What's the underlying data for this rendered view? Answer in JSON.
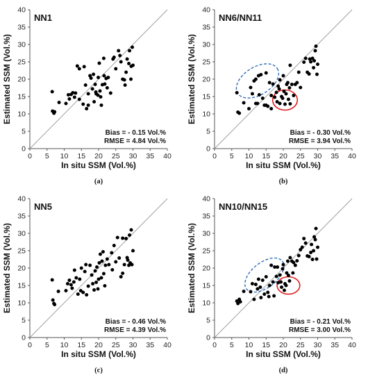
{
  "chart_data": [
    {
      "type": "scatter",
      "panel_title": "NN1",
      "caption": "(a)",
      "xlabel": "In situ SSM (Vol.%)",
      "ylabel": "Estimated SSM (Vol.%)",
      "xlim": [
        0,
        40
      ],
      "ylim": [
        0,
        40
      ],
      "xticks": [
        0,
        5,
        10,
        15,
        20,
        25,
        30,
        35,
        40
      ],
      "yticks": [
        0,
        5,
        10,
        15,
        20,
        25,
        30,
        35,
        40
      ],
      "one_to_one_line": true,
      "annotations": [
        "Bias = - 0.15 Vol.%",
        "RMSE = 4.84 Vol.%"
      ],
      "points": [
        [
          6.5,
          16.4
        ],
        [
          6.6,
          10.8
        ],
        [
          7.0,
          10.2
        ],
        [
          7.2,
          10.6
        ],
        [
          8.5,
          13.3
        ],
        [
          10.5,
          13.0
        ],
        [
          11.2,
          15.5
        ],
        [
          11.5,
          14.3
        ],
        [
          12,
          15.6
        ],
        [
          12.5,
          16.1
        ],
        [
          13,
          14.8
        ],
        [
          13.3,
          16.0
        ],
        [
          13.8,
          23.8
        ],
        [
          14.4,
          23.0
        ],
        [
          14.4,
          14.2
        ],
        [
          15.5,
          12.8
        ],
        [
          15.8,
          23.6
        ],
        [
          16.2,
          18.3
        ],
        [
          16.5,
          11.5
        ],
        [
          17,
          12.5
        ],
        [
          17,
          15.8
        ],
        [
          17.5,
          21.0
        ],
        [
          17.8,
          20.3
        ],
        [
          18.2,
          17.2
        ],
        [
          18.5,
          21.4
        ],
        [
          18.7,
          13.5
        ],
        [
          19,
          18.5
        ],
        [
          19.2,
          16.3
        ],
        [
          19.3,
          15.8
        ],
        [
          19.8,
          15.4
        ],
        [
          19.9,
          20.5
        ],
        [
          20.2,
          24.6
        ],
        [
          20.4,
          16.6
        ],
        [
          20.6,
          14.9
        ],
        [
          20.8,
          12.5
        ],
        [
          21.1,
          18.4
        ],
        [
          21.5,
          26.0
        ],
        [
          21.6,
          21.0
        ],
        [
          21.8,
          18.6
        ],
        [
          22.2,
          20.2
        ],
        [
          22.5,
          17.5
        ],
        [
          22.8,
          20.5
        ],
        [
          23.5,
          16.0
        ],
        [
          24.2,
          25.8
        ],
        [
          24.5,
          26.3
        ],
        [
          25,
          23.0
        ],
        [
          25.8,
          28.2
        ],
        [
          26.2,
          26.8
        ],
        [
          26.5,
          25.0
        ],
        [
          27,
          20.0
        ],
        [
          27.5,
          19.8
        ],
        [
          27.7,
          18.3
        ],
        [
          28,
          22.0
        ],
        [
          28.3,
          25.8
        ],
        [
          28.8,
          24.5
        ],
        [
          29,
          28.2
        ],
        [
          29.4,
          20.0
        ],
        [
          29.5,
          23.7
        ],
        [
          29.8,
          29.2
        ],
        [
          30,
          24.0
        ]
      ]
    },
    {
      "type": "scatter",
      "panel_title": "NN6/NN11",
      "caption": "(b)",
      "xlabel": "In situ SSM (Vol.%)",
      "ylabel": "Estimated SSM (Vol.%)",
      "xlim": [
        0,
        40
      ],
      "ylim": [
        0,
        40
      ],
      "xticks": [
        0,
        5,
        10,
        15,
        20,
        25,
        30,
        35,
        40
      ],
      "yticks": [
        0,
        5,
        10,
        15,
        20,
        25,
        30,
        35,
        40
      ],
      "one_to_one_line": true,
      "annotations": [
        "Bias = - 0.30 Vol.%",
        "RMSE = 3.94 Vol.%"
      ],
      "highlights": [
        {
          "shape": "ellipse",
          "style": "dashed",
          "color": "#2e6db8",
          "center": [
            12.5,
            19.5
          ],
          "radii": [
            6.8,
            4.0
          ],
          "rotation_deg": -32
        },
        {
          "shape": "ellipse",
          "style": "solid",
          "color": "#e01b1b",
          "center": [
            20.5,
            14.0
          ],
          "radii": [
            3.6,
            2.9
          ],
          "rotation_deg": 0
        }
      ],
      "points": [
        [
          6.5,
          16.1
        ],
        [
          6.8,
          10.5
        ],
        [
          7.2,
          10.2
        ],
        [
          8.5,
          13.2
        ],
        [
          10,
          11.5
        ],
        [
          10.5,
          17.6
        ],
        [
          11,
          15.8
        ],
        [
          11.5,
          19.5
        ],
        [
          12,
          13.0
        ],
        [
          12,
          20.0
        ],
        [
          12.5,
          13.0
        ],
        [
          12.8,
          21.0
        ],
        [
          13,
          15.5
        ],
        [
          13.5,
          21.3
        ],
        [
          14,
          14.5
        ],
        [
          14.5,
          12.5
        ],
        [
          15,
          12.5
        ],
        [
          15,
          21.8
        ],
        [
          15.5,
          12.2
        ],
        [
          16,
          19.0
        ],
        [
          16.5,
          11.5
        ],
        [
          16.5,
          15.3
        ],
        [
          17,
          18.6
        ],
        [
          17.5,
          14.8
        ],
        [
          18,
          16.2
        ],
        [
          18.2,
          13.5
        ],
        [
          18.5,
          18.0
        ],
        [
          18.8,
          17.2
        ],
        [
          19,
          19.8
        ],
        [
          19,
          13.0
        ],
        [
          19.5,
          15.0
        ],
        [
          19.8,
          14.5
        ],
        [
          20,
          21.0
        ],
        [
          20.2,
          16.5
        ],
        [
          20.5,
          12.8
        ],
        [
          20.8,
          15.8
        ],
        [
          21,
          18.5
        ],
        [
          21.3,
          19.0
        ],
        [
          21.5,
          14.2
        ],
        [
          21.8,
          17.5
        ],
        [
          22,
          12.9
        ],
        [
          22,
          24.0
        ],
        [
          22.5,
          18.5
        ],
        [
          23,
          15.3
        ],
        [
          23.5,
          18.5
        ],
        [
          24,
          19.0
        ],
        [
          24.5,
          22.0
        ],
        [
          25,
          17.6
        ],
        [
          26,
          24.9
        ],
        [
          26.5,
          26.0
        ],
        [
          27,
          22.0
        ],
        [
          27.5,
          21.5
        ],
        [
          27.7,
          25.8
        ],
        [
          28,
          25.0
        ],
        [
          28.5,
          26.0
        ],
        [
          28.8,
          23.3
        ],
        [
          29,
          25.3
        ],
        [
          29.3,
          28.2
        ],
        [
          29.5,
          29.5
        ],
        [
          29.8,
          21.4
        ],
        [
          30,
          24.3
        ]
      ]
    },
    {
      "type": "scatter",
      "panel_title": "NN5",
      "caption": "(c)",
      "xlabel": "In situ SSM (Vol.%)",
      "ylabel": "Estimated SSM (Vol.%)",
      "xlim": [
        0,
        40
      ],
      "ylim": [
        0,
        40
      ],
      "xticks": [
        0,
        5,
        10,
        15,
        20,
        25,
        30,
        35,
        40
      ],
      "yticks": [
        0,
        5,
        10,
        15,
        20,
        25,
        30,
        35,
        40
      ],
      "one_to_one_line": true,
      "annotations": [
        "Bias = - 0.46 Vol.%",
        "RMSE = 4.39 Vol.%"
      ],
      "points": [
        [
          6.5,
          16.6
        ],
        [
          6.7,
          10.8
        ],
        [
          7,
          9.8
        ],
        [
          7.2,
          9.5
        ],
        [
          8.3,
          13.3
        ],
        [
          10.5,
          13.5
        ],
        [
          11,
          15.5
        ],
        [
          11.5,
          16.5
        ],
        [
          12,
          15.2
        ],
        [
          12.3,
          14.2
        ],
        [
          12.8,
          16.0
        ],
        [
          13,
          19.4
        ],
        [
          13.5,
          17.2
        ],
        [
          14,
          12.5
        ],
        [
          14.5,
          16.8
        ],
        [
          14.8,
          13.5
        ],
        [
          15,
          20.0
        ],
        [
          15.5,
          13.0
        ],
        [
          16,
          19.0
        ],
        [
          16.3,
          21.0
        ],
        [
          16.5,
          12.3
        ],
        [
          17,
          14.8
        ],
        [
          17.5,
          20.8
        ],
        [
          18,
          18.0
        ],
        [
          18.3,
          15.5
        ],
        [
          18.7,
          13.7
        ],
        [
          19,
          19.2
        ],
        [
          19.3,
          15.9
        ],
        [
          19.5,
          20.3
        ],
        [
          19.8,
          14.0
        ],
        [
          20,
          16.8
        ],
        [
          20.2,
          21.5
        ],
        [
          20.5,
          24.0
        ],
        [
          20.8,
          17.2
        ],
        [
          21,
          22.0
        ],
        [
          21.3,
          24.7
        ],
        [
          21.5,
          18.4
        ],
        [
          21.8,
          14.9
        ],
        [
          22,
          20.8
        ],
        [
          22.5,
          22.6
        ],
        [
          23,
          21.0
        ],
        [
          23.8,
          24.4
        ],
        [
          24,
          19.5
        ],
        [
          24.5,
          26.5
        ],
        [
          25,
          21.8
        ],
        [
          25.5,
          28.8
        ],
        [
          26,
          22.9
        ],
        [
          26.5,
          17.5
        ],
        [
          27,
          18.5
        ],
        [
          27,
          28.6
        ],
        [
          27.5,
          21.0
        ],
        [
          28,
          28.5
        ],
        [
          28.3,
          23.0
        ],
        [
          28.5,
          22.3
        ],
        [
          28.8,
          20.8
        ],
        [
          29,
          29.5
        ],
        [
          29.2,
          21.5
        ],
        [
          29.5,
          31.0
        ],
        [
          29.7,
          21.0
        ],
        [
          30,
          25.0
        ]
      ]
    },
    {
      "type": "scatter",
      "panel_title": "NN10/NN15",
      "caption": "(d)",
      "xlabel": "In situ SSM (Vol.%)",
      "ylabel": "Estimated SSM (Vol.%)",
      "xlim": [
        0,
        40
      ],
      "ylim": [
        0,
        40
      ],
      "xticks": [
        0,
        5,
        10,
        15,
        20,
        25,
        30,
        35,
        40
      ],
      "yticks": [
        0,
        5,
        10,
        15,
        20,
        25,
        30,
        35,
        40
      ],
      "one_to_one_line": true,
      "annotations": [
        "Bias = - 0.21 Vol.%",
        "RMSE = 3.00 Vol.%"
      ],
      "highlights": [
        {
          "shape": "ellipse",
          "style": "dashed",
          "color": "#2e6db8",
          "center": [
            14.5,
            18.0
          ],
          "radii": [
            6.6,
            3.6
          ],
          "rotation_deg": -38
        },
        {
          "shape": "ellipse",
          "style": "solid",
          "color": "#e01b1b",
          "center": [
            21.5,
            15.0
          ],
          "radii": [
            3.3,
            2.5
          ],
          "rotation_deg": 0
        }
      ],
      "points": [
        [
          6.5,
          10.5
        ],
        [
          6.8,
          9.8
        ],
        [
          7.2,
          11.0
        ],
        [
          7.5,
          10.3
        ],
        [
          8.5,
          13.3
        ],
        [
          10.5,
          13.2
        ],
        [
          11,
          15.5
        ],
        [
          11.5,
          11.0
        ],
        [
          12,
          15.3
        ],
        [
          12.5,
          14.0
        ],
        [
          12.8,
          16.8
        ],
        [
          13.3,
          14.5
        ],
        [
          13.5,
          11.5
        ],
        [
          14,
          16.5
        ],
        [
          14.5,
          12.5
        ],
        [
          15,
          17.5
        ],
        [
          15.5,
          13.0
        ],
        [
          15.8,
          11.8
        ],
        [
          16,
          15.0
        ],
        [
          16.5,
          20.8
        ],
        [
          17,
          16.0
        ],
        [
          17.3,
          12.0
        ],
        [
          17.5,
          20.3
        ],
        [
          18,
          17.6
        ],
        [
          18.3,
          20.3
        ],
        [
          18.5,
          15.8
        ],
        [
          19,
          18.0
        ],
        [
          19.3,
          16.0
        ],
        [
          19.5,
          14.5
        ],
        [
          19.8,
          19.8
        ],
        [
          20,
          21.0
        ],
        [
          20.3,
          13.6
        ],
        [
          20.5,
          15.5
        ],
        [
          20.8,
          15.0
        ],
        [
          21,
          18.6
        ],
        [
          21.3,
          22.0
        ],
        [
          21.5,
          17.9
        ],
        [
          21.8,
          16.3
        ],
        [
          22,
          23.0
        ],
        [
          22.5,
          22.0
        ],
        [
          22.8,
          18.6
        ],
        [
          23,
          21.6
        ],
        [
          23.5,
          20.8
        ],
        [
          24,
          22.1
        ],
        [
          24.5,
          23.6
        ],
        [
          25,
          25.3
        ],
        [
          25.5,
          26.0
        ],
        [
          26,
          28.5
        ],
        [
          26.5,
          27.2
        ],
        [
          27,
          23.5
        ],
        [
          27.5,
          23.3
        ],
        [
          28,
          24.5
        ],
        [
          28.2,
          26.8
        ],
        [
          28.5,
          22.5
        ],
        [
          28.8,
          25.0
        ],
        [
          29,
          29.0
        ],
        [
          29.3,
          28.2
        ],
        [
          29.5,
          31.4
        ],
        [
          29.7,
          22.6
        ],
        [
          30,
          26.0
        ]
      ]
    }
  ]
}
